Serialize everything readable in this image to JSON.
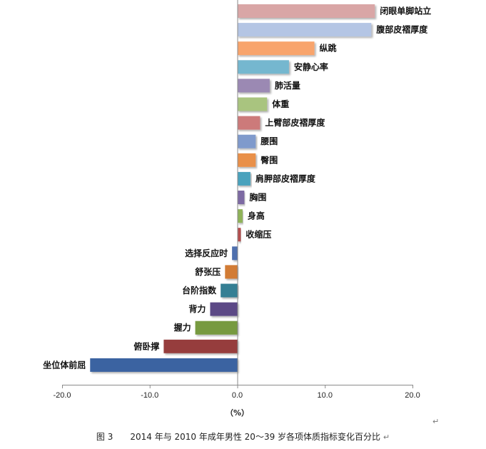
{
  "chart_data": {
    "type": "bar",
    "orientation": "horizontal",
    "categories": [
      "闭眼单脚站立",
      "腹部皮褶厚度",
      "纵跳",
      "安静心率",
      "肺活量",
      "体重",
      "上臂部皮褶厚度",
      "腰围",
      "臀围",
      "肩胛部皮褶厚度",
      "胸围",
      "身高",
      "收缩压",
      "选择反应时",
      "舒张压",
      "台阶指数",
      "背力",
      "握力",
      "俯卧撑",
      "坐位体前屈"
    ],
    "values": [
      15.7,
      15.3,
      8.8,
      5.9,
      3.7,
      3.4,
      2.6,
      2.1,
      2.1,
      1.5,
      0.8,
      0.6,
      0.4,
      -0.6,
      -1.4,
      -1.9,
      -3.1,
      -4.8,
      -8.4,
      -16.8
    ],
    "colors": [
      "#d9a6a6",
      "#b4c5e4",
      "#f8a46c",
      "#75b7cf",
      "#9b89b3",
      "#a9c47f",
      "#cc7a7a",
      "#7f9acc",
      "#e9904a",
      "#4aa2bd",
      "#7d6aa3",
      "#8fb358",
      "#b45050",
      "#4f6fae",
      "#d27b35",
      "#357f94",
      "#5c4a86",
      "#779a3f",
      "#963c3c",
      "#3b64a1"
    ],
    "xticks": [
      "-20.0",
      "-10.0",
      "0.0",
      "10.0",
      "20.0"
    ],
    "xlim": [
      -20,
      20
    ],
    "xlabel": "（%）",
    "title": "",
    "grid": false
  },
  "caption": "图 3　　2014 年与 2010 年成年男性 20～39 岁各项体质指标变化百分比",
  "para_mark": "↵"
}
